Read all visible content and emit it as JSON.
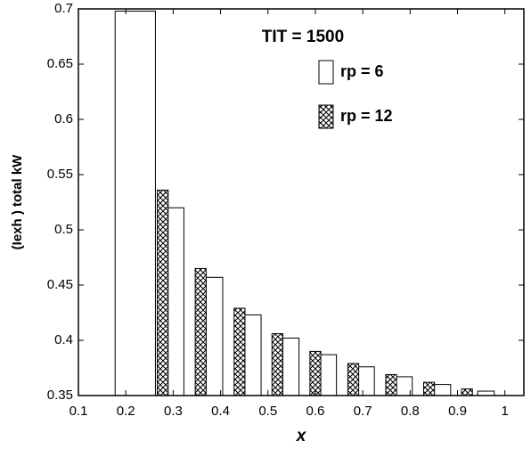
{
  "chart_data": {
    "type": "bar",
    "title": "TIT = 1500",
    "x_label": "x",
    "y_label": "(Iexh ) total kW",
    "xlim": [
      0.1,
      1.04
    ],
    "ylim": [
      0.35,
      0.7
    ],
    "xticks": [
      0.1,
      0.2,
      0.3,
      0.4,
      0.5,
      0.6,
      0.7,
      0.8,
      0.9,
      1
    ],
    "yticks": [
      0.35,
      0.4,
      0.45,
      0.5,
      0.55,
      0.6,
      0.65,
      0.7
    ],
    "grid": false,
    "legend": "top-right",
    "series": [
      {
        "name": "rp = 6",
        "color": "#ffffff",
        "pattern": "solid",
        "x": [
          0.22,
          0.305,
          0.387,
          0.468,
          0.548,
          0.627,
          0.707,
          0.787,
          0.868,
          0.96
        ],
        "values": [
          0.698,
          0.52,
          0.457,
          0.423,
          0.402,
          0.387,
          0.376,
          0.367,
          0.36,
          0.354
        ]
      },
      {
        "name": "rp = 12",
        "color": "#000000",
        "pattern": "crosshatch",
        "x": [
          0.278,
          0.358,
          0.44,
          0.52,
          0.6,
          0.68,
          0.76,
          0.84,
          0.92
        ],
        "values": [
          0.536,
          0.465,
          0.429,
          0.406,
          0.39,
          0.379,
          0.369,
          0.362,
          0.356
        ]
      }
    ]
  }
}
